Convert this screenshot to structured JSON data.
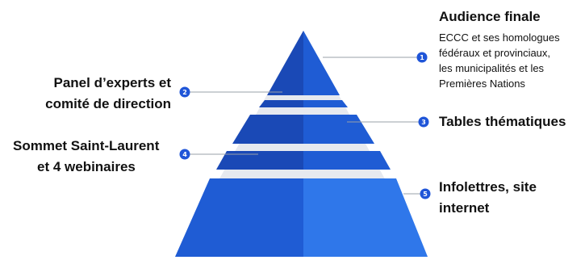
{
  "levels": [
    {
      "num": "1",
      "title": "Audience finale",
      "description": [
        "ECCC et ses homologues",
        "fédéraux et provinciaux,",
        "les municipalités et les",
        "Premières Nations"
      ]
    },
    {
      "num": "2",
      "title": [
        "Panel d’experts et",
        "comité de direction"
      ]
    },
    {
      "num": "3",
      "title": "Tables thématiques"
    },
    {
      "num": "4",
      "title": [
        "Sommet Saint-Laurent",
        "et 4 webinaires"
      ]
    },
    {
      "num": "5",
      "title": [
        "Infolettres, site",
        "internet"
      ]
    }
  ],
  "colors": {
    "tier_dark": "#1a49b6",
    "tier_mid": "#1f5cd4",
    "tier_light": "#2f77ea",
    "band": "#e6e9ef",
    "badge": "#1f55d8",
    "line": "#9aa0a8"
  }
}
